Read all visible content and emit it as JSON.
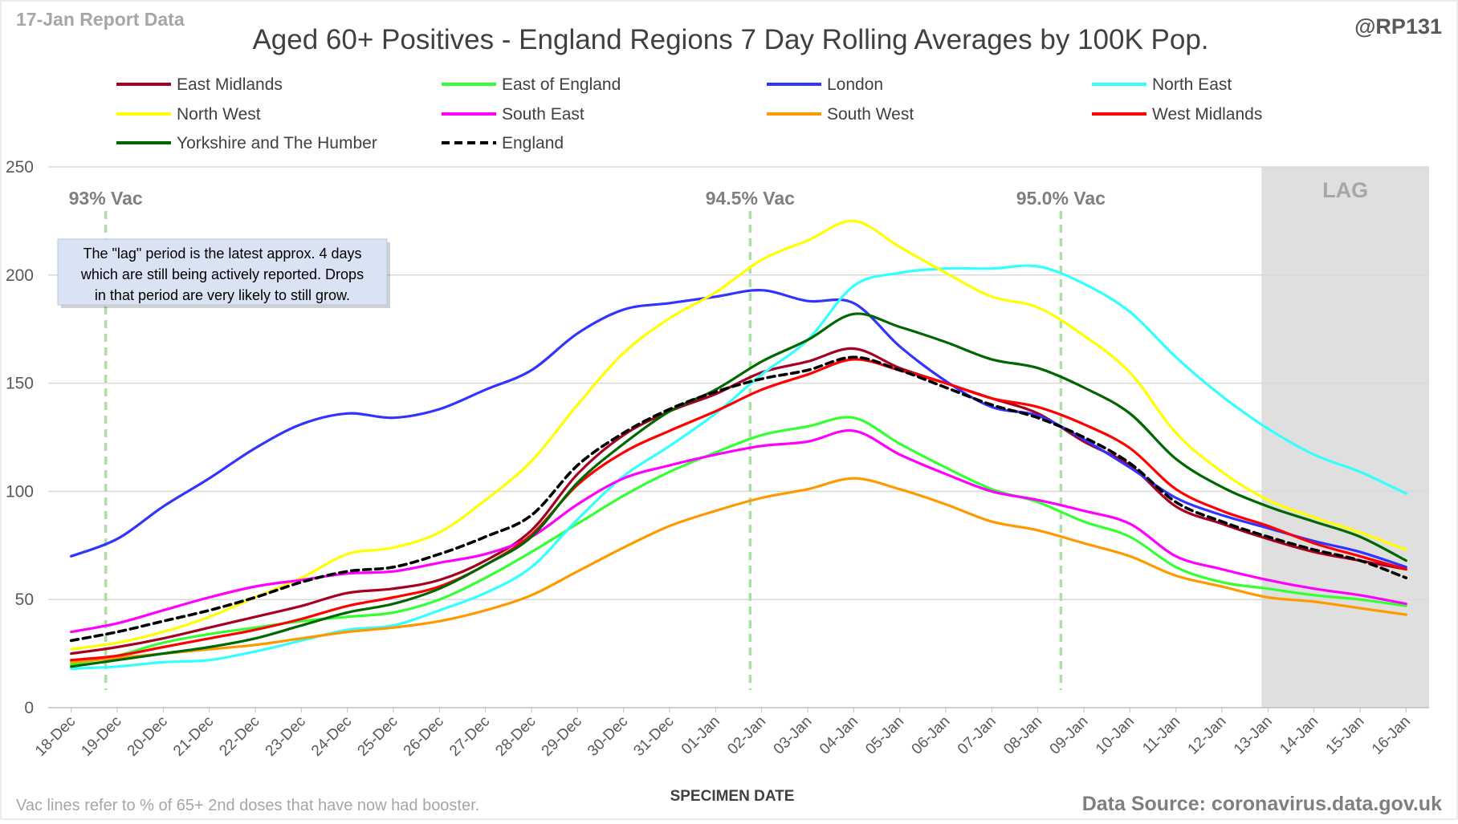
{
  "header": {
    "report_date": "17-Jan Report Data",
    "handle": "@RP131"
  },
  "footer": {
    "note": "Vac lines refer to % of 65+ 2nd doses that have now had booster.",
    "source": "Data Source: coronavirus.data.gov.uk"
  },
  "lag_box": {
    "label": "LAG",
    "note_lines": [
      "The \"lag\" period is the latest approx. 4 days",
      "which are still being actively reported.  Drops",
      "in that period are very likely to still grow."
    ]
  },
  "chart_data": {
    "type": "line",
    "title": "Aged 60+ Positives - England Regions 7 Day Rolling Averages by 100K Pop.",
    "xlabel": "SPECIMEN DATE",
    "ylabel": "",
    "ylim": [
      0,
      250
    ],
    "yticks": [
      0,
      50,
      100,
      150,
      200,
      250
    ],
    "grid": true,
    "legend_position": "top",
    "categories": [
      "18-Dec",
      "19-Dec",
      "20-Dec",
      "21-Dec",
      "22-Dec",
      "23-Dec",
      "24-Dec",
      "25-Dec",
      "26-Dec",
      "27-Dec",
      "28-Dec",
      "29-Dec",
      "30-Dec",
      "31-Dec",
      "01-Jan",
      "02-Jan",
      "03-Jan",
      "04-Jan",
      "05-Jan",
      "06-Jan",
      "07-Jan",
      "08-Jan",
      "09-Jan",
      "10-Jan",
      "11-Jan",
      "12-Jan",
      "13-Jan",
      "14-Jan",
      "15-Jan",
      "16-Jan"
    ],
    "lag_start": "13-Jan",
    "vaccination_markers": [
      {
        "label": "93% Vac",
        "position": 0.75
      },
      {
        "label": "94.5% Vac",
        "position": 14.75
      },
      {
        "label": "95.0% Vac",
        "position": 21.5
      }
    ],
    "series": [
      {
        "name": "East Midlands",
        "color": "#a50021",
        "dash": false,
        "values": [
          25,
          28,
          32,
          37,
          42,
          47,
          53,
          55,
          59,
          68,
          82,
          108,
          126,
          137,
          145,
          155,
          160,
          166,
          157,
          150,
          143,
          136,
          123,
          112,
          93,
          85,
          78,
          72,
          68,
          64
        ]
      },
      {
        "name": "East of England",
        "color": "#33ff33",
        "dash": false,
        "values": [
          20,
          24,
          30,
          34,
          37,
          40,
          42,
          44,
          50,
          60,
          72,
          85,
          98,
          109,
          118,
          126,
          130,
          134,
          122,
          111,
          101,
          95,
          86,
          79,
          65,
          58,
          55,
          52,
          50,
          47
        ]
      },
      {
        "name": "London",
        "color": "#3333ff",
        "dash": false,
        "values": [
          70,
          78,
          93,
          106,
          120,
          131,
          136,
          134,
          138,
          147,
          156,
          173,
          184,
          187,
          190,
          193,
          188,
          187,
          167,
          151,
          139,
          135,
          124,
          111,
          97,
          89,
          83,
          77,
          72,
          65
        ]
      },
      {
        "name": "North East",
        "color": "#33ffff",
        "dash": false,
        "values": [
          18,
          19,
          21,
          22,
          26,
          31,
          36,
          38,
          45,
          53,
          65,
          87,
          107,
          121,
          136,
          154,
          170,
          195,
          201,
          203,
          203,
          204,
          196,
          183,
          162,
          144,
          129,
          117,
          109,
          99
        ]
      },
      {
        "name": "North West",
        "color": "#ffff00",
        "dash": false,
        "values": [
          27,
          30,
          35,
          42,
          51,
          60,
          71,
          74,
          81,
          96,
          114,
          140,
          164,
          180,
          192,
          207,
          216,
          225,
          213,
          201,
          190,
          185,
          172,
          155,
          127,
          109,
          96,
          88,
          81,
          73
        ]
      },
      {
        "name": "South East",
        "color": "#ff00ff",
        "dash": false,
        "values": [
          35,
          39,
          45,
          51,
          56,
          59,
          62,
          63,
          67,
          71,
          79,
          94,
          106,
          112,
          117,
          121,
          123,
          128,
          117,
          108,
          100,
          96,
          91,
          85,
          70,
          64,
          59,
          55,
          52,
          48
        ]
      },
      {
        "name": "South West",
        "color": "#ff9900",
        "dash": false,
        "values": [
          21,
          23,
          25,
          27,
          29,
          32,
          35,
          37,
          40,
          45,
          52,
          63,
          74,
          84,
          91,
          97,
          101,
          106,
          101,
          94,
          86,
          82,
          76,
          70,
          61,
          56,
          51,
          49,
          46,
          43
        ]
      },
      {
        "name": "West Midlands",
        "color": "#ff0000",
        "dash": false,
        "values": [
          22,
          24,
          28,
          32,
          36,
          41,
          47,
          51,
          56,
          66,
          80,
          103,
          118,
          128,
          137,
          147,
          154,
          161,
          156,
          150,
          143,
          139,
          131,
          120,
          101,
          91,
          84,
          76,
          70,
          64
        ]
      },
      {
        "name": "Yorkshire and The Humber",
        "color": "#006600",
        "dash": false,
        "values": [
          19,
          22,
          25,
          28,
          32,
          38,
          44,
          48,
          55,
          66,
          79,
          104,
          122,
          137,
          147,
          160,
          170,
          182,
          176,
          169,
          161,
          157,
          148,
          136,
          115,
          102,
          93,
          86,
          79,
          68
        ]
      },
      {
        "name": "England",
        "color": "#000000",
        "dash": true,
        "values": [
          31,
          35,
          40,
          45,
          51,
          58,
          63,
          65,
          71,
          79,
          89,
          112,
          127,
          138,
          146,
          152,
          156,
          162,
          156,
          148,
          140,
          134,
          125,
          113,
          95,
          86,
          79,
          73,
          68,
          60
        ]
      }
    ]
  }
}
